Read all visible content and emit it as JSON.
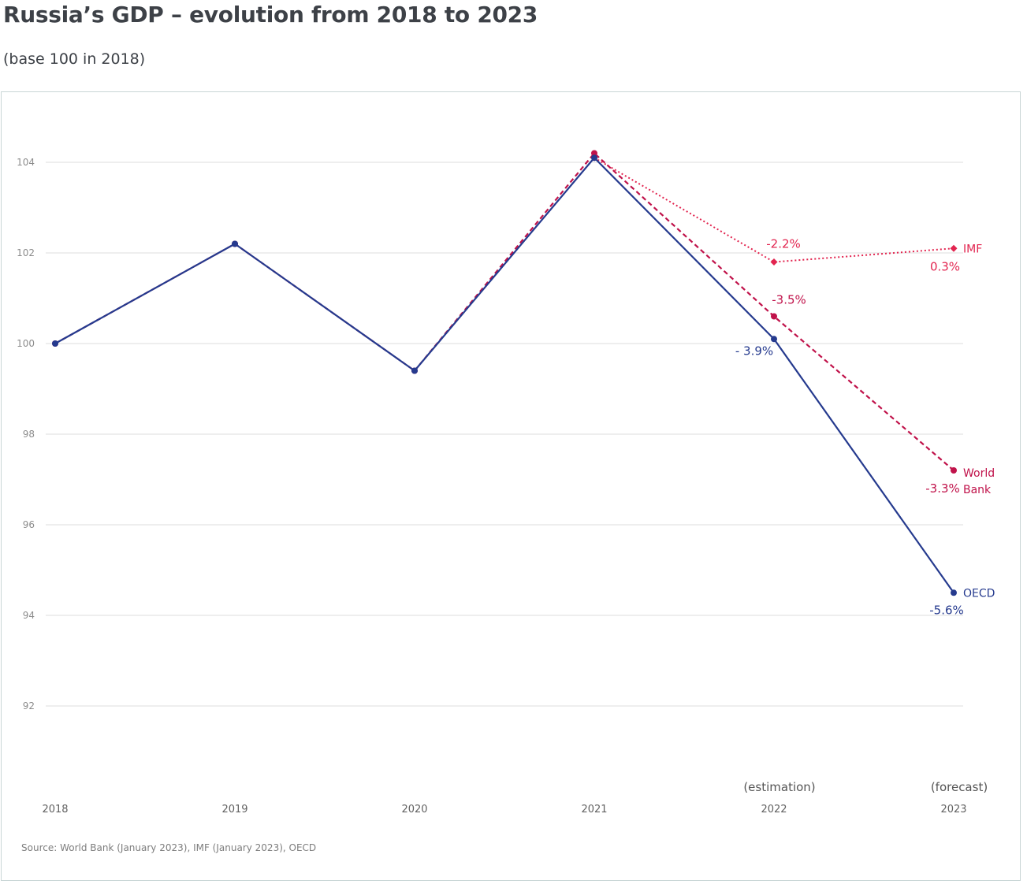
{
  "header": {
    "title": "Russia’s GDP – evolution from 2018 to 2023",
    "subtitle": "(base 100 in 2018)"
  },
  "chart_data": {
    "type": "line",
    "x": [
      "2018",
      "2019",
      "2020",
      "2021",
      "2022",
      "2023"
    ],
    "x_sublabels": [
      "",
      "",
      "",
      "",
      "(estimation)",
      "(forecast)"
    ],
    "yticks": [
      92,
      94,
      96,
      98,
      100,
      102,
      104
    ],
    "ylim": [
      90.2,
      105.6
    ],
    "grid": true,
    "series": [
      {
        "name": "OECD",
        "color": "#253a8e",
        "style": "solid",
        "marker": "circle",
        "values": [
          100,
          102.2,
          99.4,
          104.1,
          100.1,
          94.5
        ],
        "labels": [
          "",
          "",
          "",
          "",
          "- 3.9%",
          "-5.6%"
        ]
      },
      {
        "name": "World Bank",
        "color": "#c0124a",
        "style": "dashed",
        "marker": "circle",
        "values": [
          100,
          102.2,
          99.4,
          104.2,
          100.6,
          97.2
        ],
        "labels": [
          "",
          "",
          "",
          "",
          "-3.5%",
          "-3.3%"
        ]
      },
      {
        "name": "IMF",
        "color": "#e2244f",
        "style": "dotted",
        "marker": "diamond",
        "values": [
          null,
          null,
          null,
          104.1,
          101.8,
          102.1
        ],
        "labels": [
          "",
          "",
          "",
          "",
          "-2.2%",
          "0.3%"
        ]
      }
    ],
    "source": "Source: World Bank (January 2023), IMF (January 2023), OECD"
  }
}
